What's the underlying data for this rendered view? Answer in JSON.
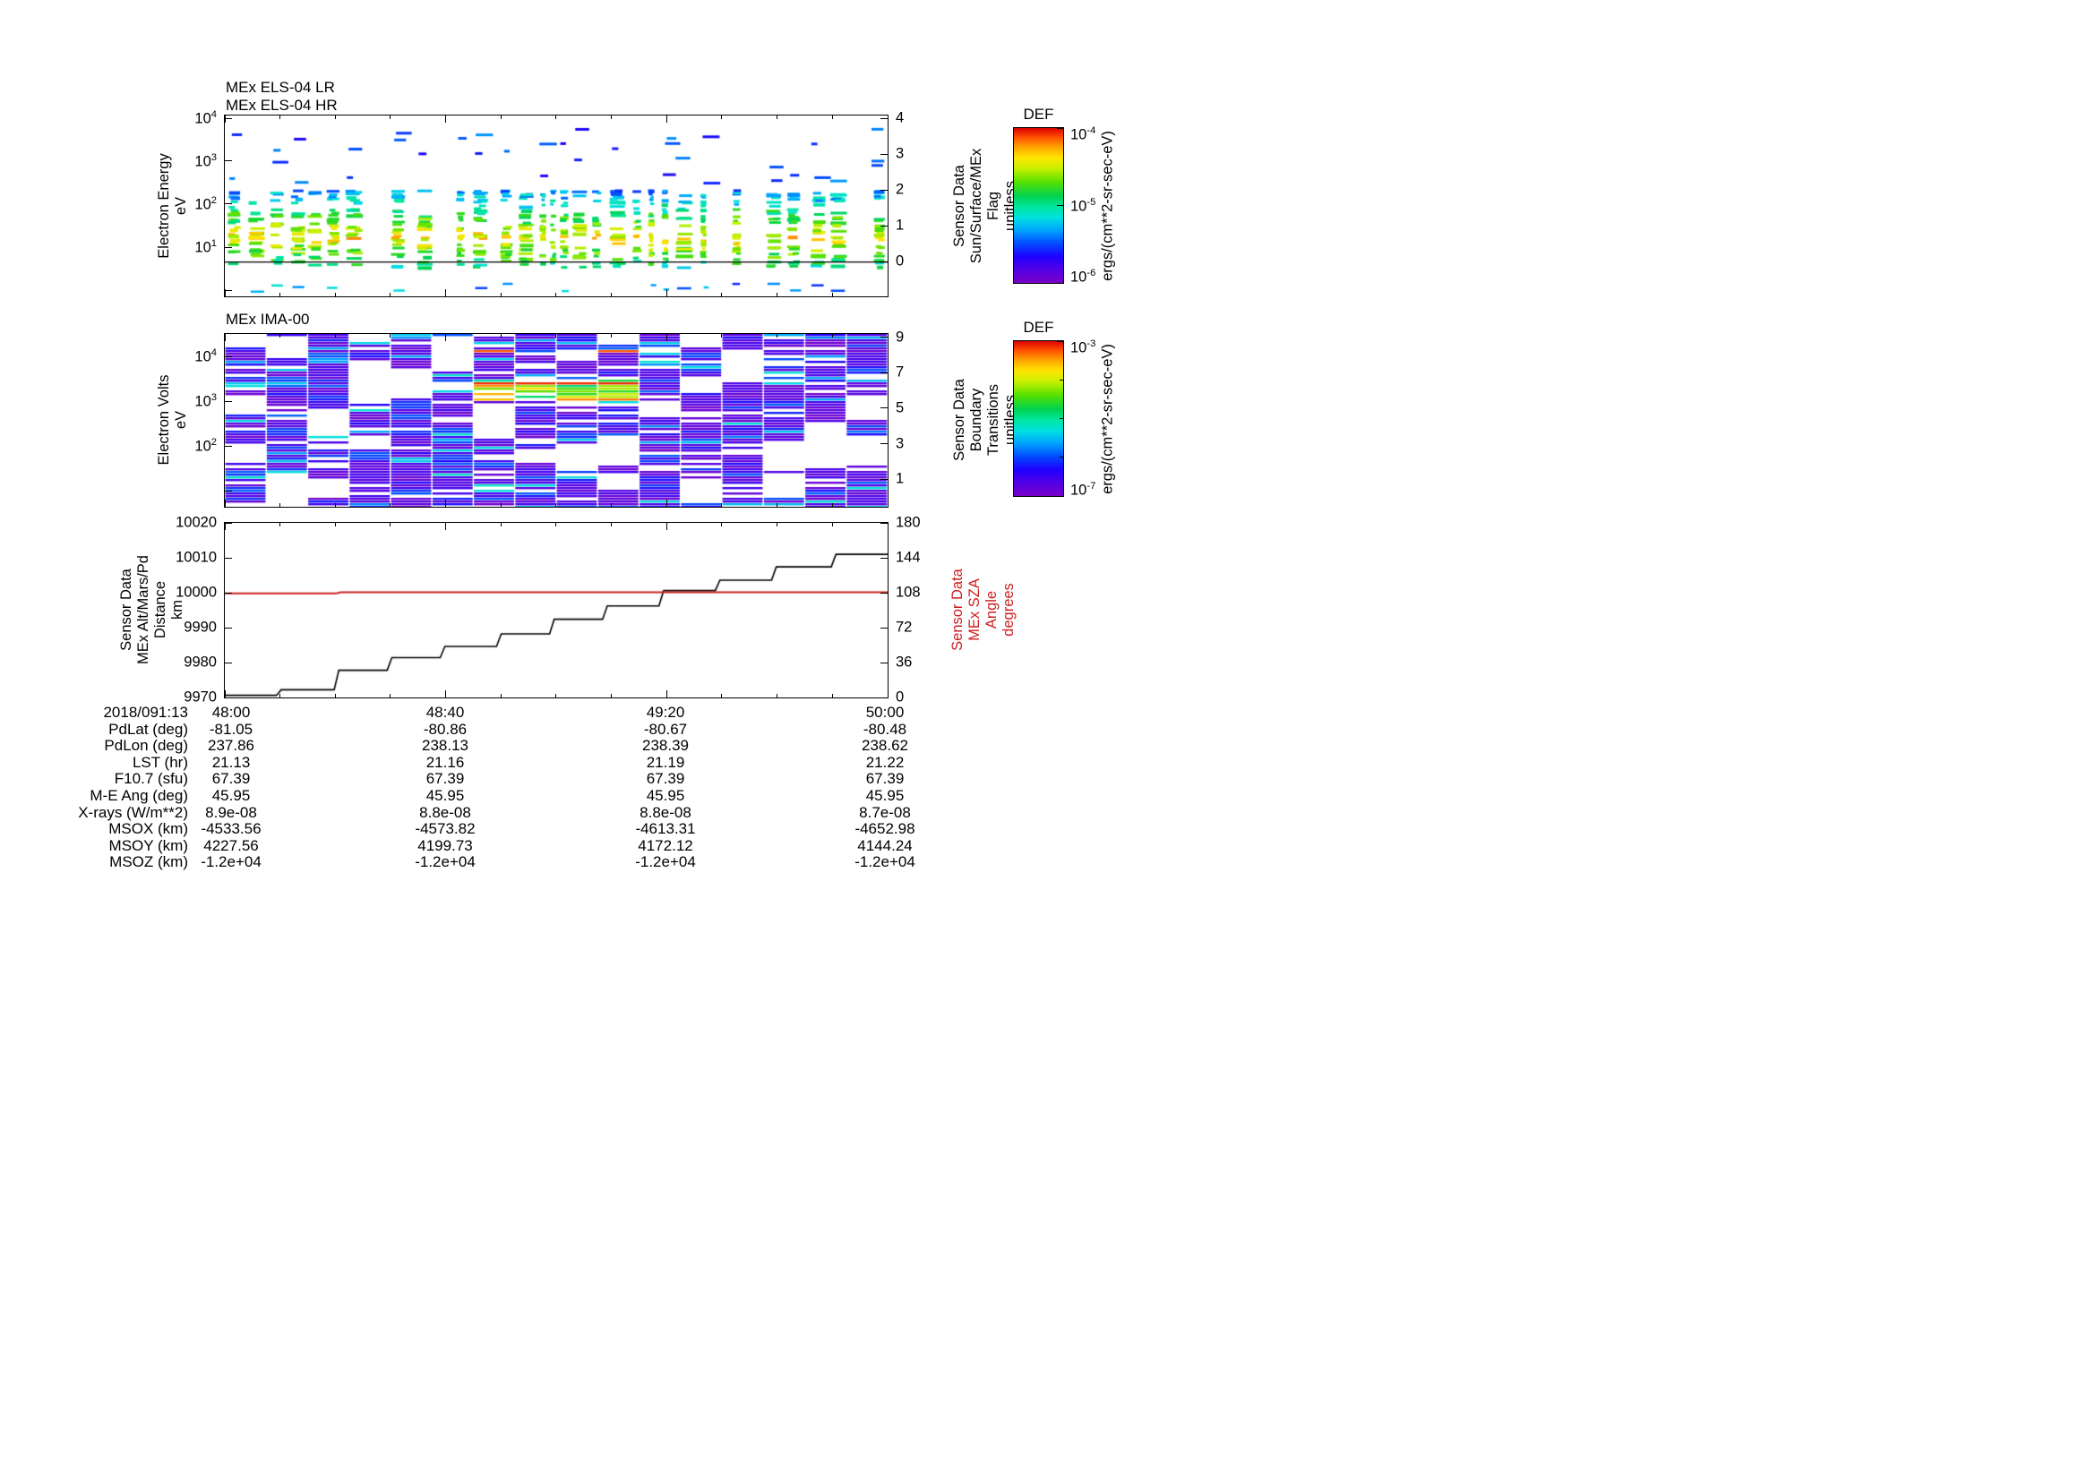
{
  "colors": {
    "background": "#ffffff",
    "axis": "#000000",
    "sza_red": "#cc2020"
  },
  "colormap_stops": [
    [
      0.0,
      "#7a00c8"
    ],
    [
      0.09,
      "#5000e6"
    ],
    [
      0.17,
      "#1e00ff"
    ],
    [
      0.26,
      "#0050ff"
    ],
    [
      0.34,
      "#00a4ff"
    ],
    [
      0.42,
      "#00e0e0"
    ],
    [
      0.49,
      "#00e6a0"
    ],
    [
      0.56,
      "#00d250"
    ],
    [
      0.65,
      "#55e000"
    ],
    [
      0.74,
      "#c8f000"
    ],
    [
      0.81,
      "#ffe400"
    ],
    [
      0.88,
      "#ffa000"
    ],
    [
      0.94,
      "#ff5000"
    ],
    [
      1.0,
      "#dc0000"
    ]
  ],
  "chart_data": [
    {
      "type": "heatmap",
      "id": "els",
      "titles": [
        "MEx ELS-04 LR",
        "MEx ELS-04 HR"
      ],
      "ylabel_lines": [
        "Electron Energy",
        "eV"
      ],
      "yscale": "log",
      "y_ticks": [
        {
          "f": 0.015,
          "label": "10^4"
        },
        {
          "f": 0.252,
          "label": "10^3"
        },
        {
          "f": 0.49,
          "label": "10^2"
        },
        {
          "f": 0.728,
          "label": "10^1"
        },
        {
          "f": 0.966,
          "label": ""
        }
      ],
      "right_label_lines": [
        "Sensor Data",
        "Sun/Surface/MEx",
        "Flag",
        "unitless"
      ],
      "right_ticks": [
        {
          "f": 0.015,
          "label": "4"
        },
        {
          "f": 0.213,
          "label": "3"
        },
        {
          "f": 0.411,
          "label": "2"
        },
        {
          "f": 0.609,
          "label": "1"
        },
        {
          "f": 0.807,
          "label": "0"
        }
      ],
      "flag_line_value": 0,
      "flag_line_f": 0.807,
      "x_range": [
        "48:00",
        "50:00"
      ],
      "gen": {
        "seed": 42,
        "log_emax": 4.063,
        "log_emin": -0.146,
        "core_logE": [
          0.55,
          2.35
        ],
        "core_peak_logE": 1.25,
        "high_logE": [
          2.45,
          3.8
        ]
      },
      "summary": "Electron energy-time spectrogram in bursts: intense 5-200 eV plasma (green-yellow, ~1e-5 ergs), sparse 0.3-6 keV dashes (blue, ~1e-6 ergs); horizontal black line marks Sun/Surface/MEx flag value 0."
    },
    {
      "type": "heatmap",
      "id": "ima",
      "title": "MEx IMA-00",
      "ylabel_lines": [
        "Electron Volts",
        "eV"
      ],
      "yscale": "log",
      "y_ticks": [
        {
          "f": 0.13,
          "label": "10^4"
        },
        {
          "f": 0.39,
          "label": "10^3"
        },
        {
          "f": 0.65,
          "label": "10^2"
        },
        {
          "f": 0.91,
          "label": ""
        }
      ],
      "right_label_lines": [
        "Sensor Data",
        "Boundary",
        "Transitions",
        "unitless"
      ],
      "right_ticks": [
        {
          "f": 0.02,
          "label": "9"
        },
        {
          "f": 0.225,
          "label": "7"
        },
        {
          "f": 0.43,
          "label": "5"
        },
        {
          "f": 0.635,
          "label": "3"
        },
        {
          "f": 0.84,
          "label": "1"
        }
      ],
      "gen": {
        "seed": 7,
        "blocks": 16,
        "hot_blocks": [
          6,
          7,
          8,
          9
        ],
        "hot_band": [
          0.26,
          0.38
        ]
      },
      "summary": "Ion mass analyzer energy spectrogram: 16 time blocks of striped violet/blue low flux with white gaps; cyan-green-yellow-red enhancement near 1 keV in mid-interval blocks."
    },
    {
      "type": "line",
      "id": "alt",
      "left_axis": {
        "label_lines": [
          "Sensor Data",
          "MEx Alt/Mars/Pd",
          "Distance",
          "km"
        ],
        "range": [
          9970,
          10020
        ],
        "ticks": [
          {
            "f": 0.0,
            "label": "10020"
          },
          {
            "f": 0.2,
            "label": "10010"
          },
          {
            "f": 0.4,
            "label": "10000"
          },
          {
            "f": 0.6,
            "label": "9990"
          },
          {
            "f": 0.8,
            "label": "9980"
          },
          {
            "f": 1.0,
            "label": "9970"
          }
        ]
      },
      "right_axis": {
        "label_lines": [
          "Sensor Data",
          "MEx SZA",
          "Angle",
          "degrees"
        ],
        "color": "#cc2020",
        "range": [
          0,
          180
        ],
        "ticks": [
          {
            "f": 0.0,
            "label": "180"
          },
          {
            "f": 0.2,
            "label": "144"
          },
          {
            "f": 0.4,
            "label": "108"
          },
          {
            "f": 0.6,
            "label": "72"
          },
          {
            "f": 0.8,
            "label": "36"
          },
          {
            "f": 1.0,
            "label": "0"
          }
        ]
      },
      "series": [
        {
          "name": "MEx Alt/Mars/Pd Distance (km)",
          "color": "#000000",
          "axis": "left",
          "step_points": [
            [
              0.0,
              9970.6
            ],
            [
              0.078,
              9970.6
            ],
            [
              0.085,
              9972.2
            ],
            [
              0.165,
              9972.2
            ],
            [
              0.172,
              9977.8
            ],
            [
              0.245,
              9977.8
            ],
            [
              0.252,
              9981.4
            ],
            [
              0.325,
              9981.4
            ],
            [
              0.332,
              9984.6
            ],
            [
              0.41,
              9984.6
            ],
            [
              0.417,
              9988.2
            ],
            [
              0.49,
              9988.2
            ],
            [
              0.497,
              9992.4
            ],
            [
              0.57,
              9992.4
            ],
            [
              0.577,
              9996.2
            ],
            [
              0.655,
              9996.2
            ],
            [
              0.662,
              10000.6
            ],
            [
              0.74,
              10000.6
            ],
            [
              0.747,
              10003.6
            ],
            [
              0.825,
              10003.6
            ],
            [
              0.832,
              10007.4
            ],
            [
              0.915,
              10007.4
            ],
            [
              0.922,
              10011.0
            ],
            [
              1.0,
              10011.0
            ]
          ]
        },
        {
          "name": "MEx SZA Angle (deg)",
          "color": "#cc2020",
          "axis": "right",
          "step_points": [
            [
              0.0,
              107.3
            ],
            [
              0.168,
              107.3
            ],
            [
              0.175,
              108.4
            ],
            [
              1.0,
              108.4
            ]
          ]
        }
      ],
      "x_tick_labels": [
        "48:00",
        "48:40",
        "49:20",
        "50:00"
      ],
      "x_ticks_major": [
        0,
        0.33333,
        0.66667,
        1
      ],
      "x_minor_step": 0.083333,
      "date_label": "2018/091:13"
    }
  ],
  "colorbars": [
    {
      "title": "DEF",
      "units": "ergs/(cm**2-sr-sec-eV)",
      "ticks": [
        {
          "f": 0.0,
          "label": "10^-4"
        },
        {
          "f": 0.5,
          "label": "10^-5"
        },
        {
          "f": 1.0,
          "label": "10^-6"
        }
      ]
    },
    {
      "title": "DEF",
      "units": "ergs/(cm**2-sr-sec-eV)",
      "ticks": [
        {
          "f": 0.0,
          "label": "10^-3"
        },
        {
          "f": 1.0,
          "label": "10^-7"
        }
      ],
      "minor_f": [
        0.25,
        0.5,
        0.75
      ]
    }
  ],
  "table": {
    "rows": [
      {
        "label": "2018/091:13",
        "values": [
          "48:00",
          "48:40",
          "49:20",
          "50:00"
        ]
      },
      {
        "label": "PdLat (deg)",
        "values": [
          "-81.05",
          "-80.86",
          "-80.67",
          "-80.48"
        ]
      },
      {
        "label": "PdLon (deg)",
        "values": [
          "237.86",
          "238.13",
          "238.39",
          "238.62"
        ]
      },
      {
        "label": "LST (hr)",
        "values": [
          "21.13",
          "21.16",
          "21.19",
          "21.22"
        ]
      },
      {
        "label": "F10.7 (sfu)",
        "values": [
          "67.39",
          "67.39",
          "67.39",
          "67.39"
        ]
      },
      {
        "label": "M-E Ang (deg)",
        "values": [
          "45.95",
          "45.95",
          "45.95",
          "45.95"
        ]
      },
      {
        "label": "X-rays (W/m**2)",
        "values": [
          "8.9e-08",
          "8.8e-08",
          "8.8e-08",
          "8.7e-08"
        ]
      },
      {
        "label": "MSOX (km)",
        "values": [
          "-4533.56",
          "-4573.82",
          "-4613.31",
          "-4652.98"
        ]
      },
      {
        "label": "MSOY (km)",
        "values": [
          "4227.56",
          "4199.73",
          "4172.12",
          "4144.24"
        ]
      },
      {
        "label": "MSOZ (km)",
        "values": [
          "-1.2e+04",
          "-1.2e+04",
          "-1.2e+04",
          "-1.2e+04"
        ]
      }
    ]
  }
}
